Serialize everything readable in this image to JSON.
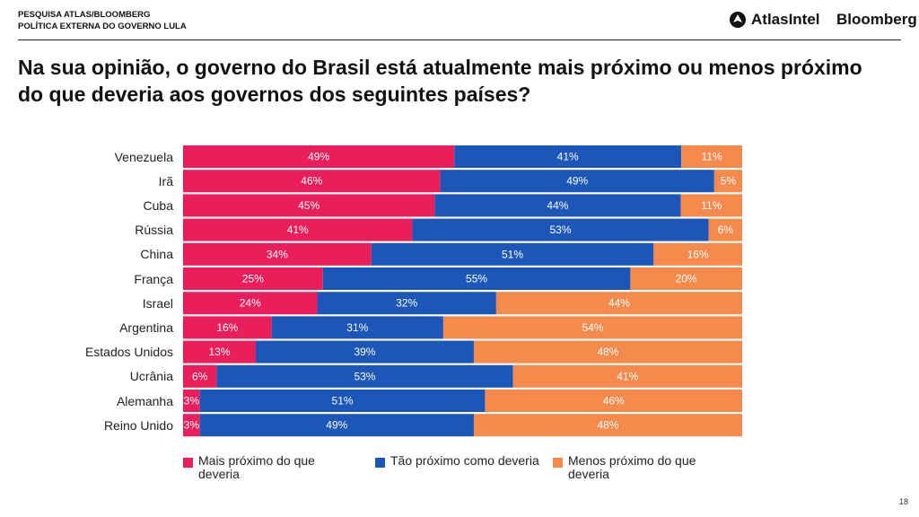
{
  "header": {
    "line1": "PESQUISA ATLAS/BLOOMBERG",
    "line2": "POLÍTICA EXTERNA DO GOVERNO LULA",
    "atlas_brand": "AtlasIntel",
    "bloomberg_brand": "Bloomberg"
  },
  "title": "Na sua opinião, o governo do Brasil está atualmente mais próximo ou menos próximo do que deveria aos governos dos seguintes países?",
  "page_number": "18",
  "colors": {
    "mais": "#E91E5A",
    "tao": "#1B56B8",
    "menos": "#F58A4C"
  },
  "chart_data": {
    "type": "bar",
    "orientation": "horizontal",
    "stacked": true,
    "categories": [
      "Venezuela",
      "Irã",
      "Cuba",
      "Rússia",
      "China",
      "França",
      "Israel",
      "Argentina",
      "Estados Unidos",
      "Ucrânia",
      "Alemanha",
      "Reino Unido"
    ],
    "series": [
      {
        "name": "Mais próximo do que deveria",
        "values": [
          49,
          46,
          45,
          41,
          34,
          25,
          24,
          16,
          13,
          6,
          3,
          3
        ]
      },
      {
        "name": "Tão próximo como deveria",
        "values": [
          41,
          49,
          44,
          53,
          51,
          55,
          32,
          31,
          39,
          53,
          51,
          49
        ]
      },
      {
        "name": "Menos próximo do que deveria",
        "values": [
          11,
          5,
          11,
          6,
          16,
          20,
          44,
          54,
          48,
          41,
          46,
          48
        ]
      }
    ],
    "unit": "%",
    "legend_position": "bottom"
  }
}
